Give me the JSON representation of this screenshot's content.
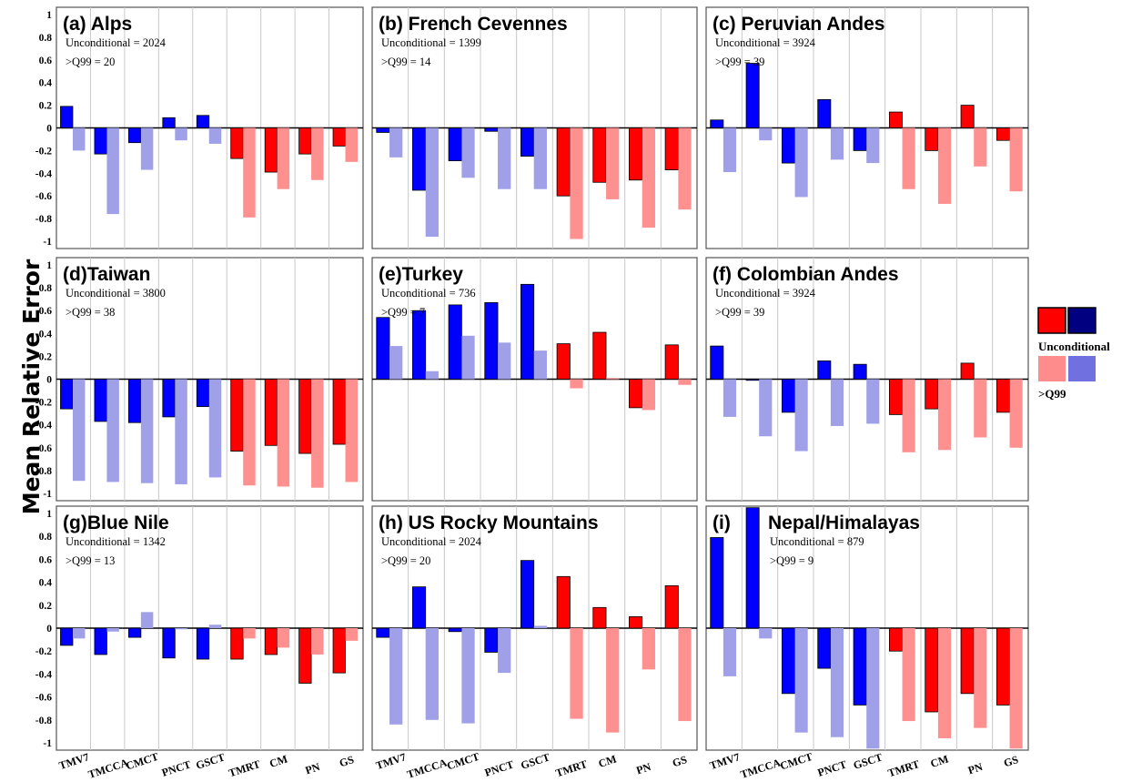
{
  "figure": {
    "ylabel": "Mean Relative Error"
  },
  "legend": {
    "label_unconditional": "Unconditional",
    "label_q99": ">Q99",
    "colors": {
      "red_dark": "#ff0000",
      "blue_dark": "#000080",
      "red_light": "#ff8c8c",
      "blue_light": "#7070e0"
    }
  },
  "colors": {
    "blue_unconditional": "#0000ff",
    "blue_q99": "#a0a0e8",
    "red_unconditional": "#ff0000",
    "red_q99": "#ff9090"
  },
  "chart_data": [
    {
      "type": "bar",
      "title": "(a) Alps",
      "stats": [
        "Unconditional = 2024",
        ">Q99 = 20"
      ],
      "categories": [
        "TMV7",
        "TMCCA",
        "CMCT",
        "PNCT",
        "GSCT",
        "TMRT",
        "CM",
        "PN",
        "GS"
      ],
      "series": [
        {
          "name": "Unconditional",
          "values": [
            0.19,
            -0.23,
            -0.13,
            0.09,
            0.11,
            -0.27,
            -0.39,
            -0.23,
            -0.16
          ]
        },
        {
          "name": ">Q99",
          "values": [
            -0.2,
            -0.76,
            -0.37,
            -0.11,
            -0.14,
            -0.79,
            -0.54,
            -0.46,
            -0.3
          ]
        }
      ],
      "ylim": [
        -1,
        1
      ],
      "yticks": [
        "1",
        "0.8",
        "0.6",
        "0.4",
        "0.2",
        "0",
        "-0.2",
        "-0.4",
        "-0.6",
        "-0.8",
        "-1"
      ]
    },
    {
      "type": "bar",
      "title": "(b) French Cevennes",
      "stats": [
        "Unconditional = 1399",
        ">Q99 = 14"
      ],
      "categories": [
        "TMV7",
        "TMCCA",
        "CMCT",
        "PNCT",
        "GSCT",
        "TMRT",
        "CM",
        "PN",
        "GS"
      ],
      "series": [
        {
          "name": "Unconditional",
          "values": [
            -0.04,
            -0.55,
            -0.29,
            -0.03,
            -0.25,
            -0.6,
            -0.48,
            -0.46,
            -0.37
          ]
        },
        {
          "name": ">Q99",
          "values": [
            -0.26,
            -0.96,
            -0.44,
            -0.54,
            -0.54,
            -0.98,
            -0.63,
            -0.88,
            -0.72
          ]
        }
      ],
      "ylim": [
        -1,
        1
      ]
    },
    {
      "type": "bar",
      "title": "(c) Peruvian Andes",
      "stats": [
        "Unconditional = 3924",
        ">Q99 = 39"
      ],
      "categories": [
        "TMV7",
        "TMCCA",
        "CMCT",
        "PNCT",
        "GSCT",
        "TMRT",
        "CM",
        "PN",
        "GS"
      ],
      "series": [
        {
          "name": "Unconditional",
          "values": [
            0.07,
            0.57,
            -0.31,
            0.25,
            -0.2,
            0.14,
            -0.2,
            0.2,
            -0.11
          ]
        },
        {
          "name": ">Q99",
          "values": [
            -0.39,
            -0.11,
            -0.61,
            -0.28,
            -0.31,
            -0.54,
            -0.67,
            -0.34,
            -0.56
          ]
        }
      ],
      "ylim": [
        -1,
        1
      ]
    },
    {
      "type": "bar",
      "title": "(d)Taiwan",
      "stats": [
        "Unconditional = 3800",
        ">Q99 = 38"
      ],
      "categories": [
        "TMV7",
        "TMCCA",
        "CMCT",
        "PNCT",
        "GSCT",
        "TMRT",
        "CM",
        "PN",
        "GS"
      ],
      "series": [
        {
          "name": "Unconditional",
          "values": [
            -0.26,
            -0.37,
            -0.38,
            -0.33,
            -0.24,
            -0.63,
            -0.58,
            -0.65,
            -0.57
          ]
        },
        {
          "name": ">Q99",
          "values": [
            -0.89,
            -0.9,
            -0.91,
            -0.92,
            -0.86,
            -0.93,
            -0.94,
            -0.95,
            -0.9
          ]
        }
      ],
      "ylim": [
        -1,
        1
      ],
      "yticks": [
        "1",
        "0.8",
        "0.6",
        "0.4",
        "0.2",
        "0",
        "-0.2",
        "-0.4",
        "-0.6",
        "-0.8",
        "-1"
      ]
    },
    {
      "type": "bar",
      "title": "(e)Turkey",
      "stats": [
        "Unconditional = 736",
        ">Q99 = 7"
      ],
      "categories": [
        "TMV7",
        "TMCCA",
        "CMCT",
        "PNCT",
        "GSCT",
        "TMRT",
        "CM",
        "PN",
        "GS"
      ],
      "series": [
        {
          "name": "Unconditional",
          "values": [
            0.54,
            0.6,
            0.65,
            0.67,
            0.83,
            0.31,
            0.41,
            -0.25,
            0.3
          ]
        },
        {
          "name": ">Q99",
          "values": [
            0.29,
            0.07,
            0.38,
            0.32,
            0.25,
            -0.08,
            0.01,
            -0.27,
            -0.05
          ]
        }
      ],
      "ylim": [
        -1,
        1
      ]
    },
    {
      "type": "bar",
      "title": "(f) Colombian Andes",
      "stats": [
        "Unconditional = 3924",
        ">Q99 = 39"
      ],
      "categories": [
        "TMV7",
        "TMCCA",
        "CMCT",
        "PNCT",
        "GSCT",
        "TMRT",
        "CM",
        "PN",
        "GS"
      ],
      "series": [
        {
          "name": "Unconditional",
          "values": [
            0.29,
            -0.01,
            -0.29,
            0.16,
            0.13,
            -0.31,
            -0.26,
            0.14,
            -0.29
          ]
        },
        {
          "name": ">Q99",
          "values": [
            -0.33,
            -0.5,
            -0.63,
            -0.41,
            -0.39,
            -0.64,
            -0.62,
            -0.51,
            -0.6
          ]
        }
      ],
      "ylim": [
        -1,
        1
      ]
    },
    {
      "type": "bar",
      "title": "(g)Blue Nile",
      "stats": [
        "Unconditional = 1342",
        ">Q99 = 13"
      ],
      "categories": [
        "TMV7",
        "TMCCA",
        "CMCT",
        "PNCT",
        "GSCT",
        "TMRT",
        "CM",
        "PN",
        "GS"
      ],
      "series": [
        {
          "name": "Unconditional",
          "values": [
            -0.15,
            -0.23,
            -0.08,
            -0.26,
            -0.27,
            -0.27,
            -0.23,
            -0.48,
            -0.39
          ]
        },
        {
          "name": ">Q99",
          "values": [
            -0.09,
            -0.03,
            0.14,
            -0.01,
            0.03,
            -0.09,
            -0.17,
            -0.23,
            -0.11
          ]
        }
      ],
      "ylim": [
        -1,
        1
      ],
      "yticks": [
        "1",
        "0.8",
        "0.6",
        "0.4",
        "0.2",
        "0",
        "-0.2",
        "-0.4",
        "-0.6",
        "-0.8",
        "-1"
      ],
      "xticks": [
        "TMV7",
        "TMCCA",
        "CMCT",
        "PNCT",
        "GSCT",
        "TMRT",
        "CM",
        "PN",
        "GS"
      ]
    },
    {
      "type": "bar",
      "title": "(h) US Rocky Mountains",
      "stats": [
        "Unconditional = 2024",
        ">Q99 = 20"
      ],
      "categories": [
        "TMV7",
        "TMCCA",
        "CMCT",
        "PNCT",
        "GSCT",
        "TMRT",
        "CM",
        "PN",
        "GS"
      ],
      "series": [
        {
          "name": "Unconditional",
          "values": [
            -0.08,
            0.36,
            -0.03,
            -0.21,
            0.59,
            0.45,
            0.18,
            0.1,
            0.37
          ]
        },
        {
          "name": ">Q99",
          "values": [
            -0.84,
            -0.8,
            -0.83,
            -0.39,
            0.02,
            -0.79,
            -0.91,
            -0.36,
            -0.81
          ]
        }
      ],
      "ylim": [
        -1,
        1
      ],
      "xticks": [
        "TMV7",
        "TMCCA",
        "CMCT",
        "PNCT",
        "GSCT",
        "TMRT",
        "CM",
        "PN",
        "GS"
      ]
    },
    {
      "type": "bar",
      "title": "Nepal/Himalayas",
      "panel_letter": "(i)",
      "stats": [
        "Unconditional = 879",
        ">Q99 = 9"
      ],
      "categories": [
        "TMV7",
        "TMCCA",
        "CMCT",
        "PNCT",
        "GSCT",
        "TMRT",
        "CM",
        "PN",
        "GS"
      ],
      "series": [
        {
          "name": "Unconditional",
          "values": [
            0.79,
            1.05,
            -0.57,
            -0.35,
            -0.67,
            -0.2,
            -0.73,
            -0.57,
            -0.67
          ]
        },
        {
          "name": ">Q99",
          "values": [
            -0.42,
            -0.09,
            -0.91,
            -0.95,
            -1.05,
            -0.81,
            -0.96,
            -0.87,
            -1.05
          ]
        }
      ],
      "ylim": [
        -1,
        1
      ],
      "xticks": [
        "TMV7",
        "TMCCA",
        "CMCT",
        "PNCT",
        "GSCT",
        "TMRT",
        "CM",
        "PN",
        "GS"
      ]
    }
  ]
}
